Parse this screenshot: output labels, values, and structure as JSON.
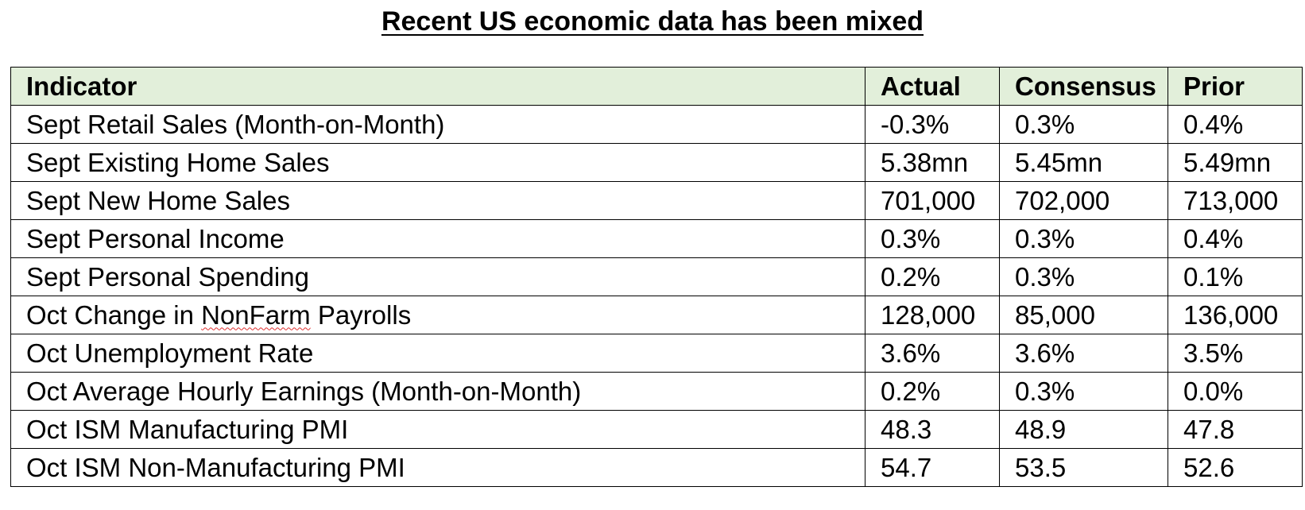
{
  "title": "Recent US economic data has been mixed",
  "table": {
    "headers": [
      "Indicator",
      "Actual",
      "Consensus",
      "Prior"
    ],
    "rows": [
      [
        "Sept Retail Sales (Month-on-Month)",
        "-0.3%",
        "0.3%",
        "0.4%"
      ],
      [
        "Sept Existing Home Sales",
        "5.38mn",
        "5.45mn",
        "5.49mn"
      ],
      [
        "Sept New Home Sales",
        "701,000",
        "702,000",
        "713,000"
      ],
      [
        "Sept Personal Income",
        "0.3%",
        "0.3%",
        "0.4%"
      ],
      [
        "Sept Personal Spending",
        "0.2%",
        "0.3%",
        "0.1%"
      ],
      [
        "Oct Change in NonFarm Payrolls",
        "128,000",
        "85,000",
        "136,000"
      ],
      [
        "Oct Unemployment Rate",
        "3.6%",
        "3.6%",
        "3.5%"
      ],
      [
        "Oct Average Hourly Earnings (Month-on-Month)",
        "0.2%",
        "0.3%",
        "0.0%"
      ],
      [
        "Oct ISM Manufacturing PMI",
        "48.3",
        "48.9",
        "47.8"
      ],
      [
        "Oct ISM Non-Manufacturing PMI",
        "54.7",
        "53.5",
        "52.6"
      ]
    ],
    "spellcheck_flag": {
      "row": 5,
      "word": "NonFarm"
    }
  },
  "colors": {
    "header_background": "#e2efda",
    "border": "#000000",
    "spellcheck_underline": "#e03030"
  }
}
